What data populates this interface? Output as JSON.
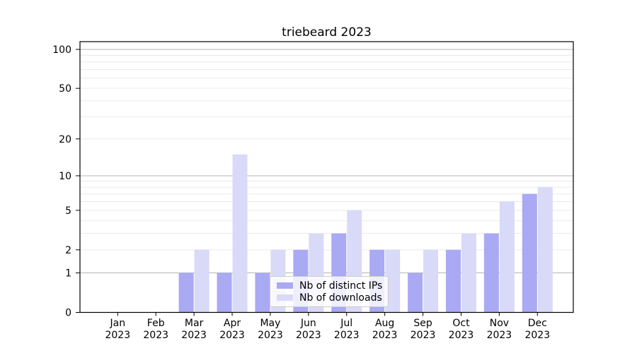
{
  "chart_data": {
    "type": "bar",
    "title": "triebeard 2023",
    "categories": [
      "Jan",
      "Feb",
      "Mar",
      "Apr",
      "May",
      "Jun",
      "Jul",
      "Aug",
      "Sep",
      "Oct",
      "Nov",
      "Dec"
    ],
    "year": "2023",
    "series": [
      {
        "name": "Nb of distinct IPs",
        "color": "#a9a9f4",
        "values": [
          0,
          0,
          1,
          1,
          1,
          2,
          3,
          2,
          1,
          2,
          3,
          7
        ]
      },
      {
        "name": "Nb of downloads",
        "color": "#d9d9f8",
        "values": [
          0,
          0,
          2,
          15,
          2,
          3,
          5,
          2,
          2,
          3,
          6,
          8
        ]
      }
    ],
    "xlabel": "",
    "ylabel": "",
    "y_scale": "log1p",
    "ylim": [
      0,
      114
    ],
    "y_ticks": [
      0,
      1,
      2,
      5,
      10,
      20,
      50,
      100
    ],
    "grid": {
      "major_lines": [
        1,
        10,
        100
      ],
      "minor_lines": [
        2,
        3,
        4,
        5,
        6,
        7,
        8,
        9,
        20,
        30,
        40,
        50,
        60,
        70,
        80,
        90
      ],
      "major_color": "#b4b4b4",
      "minor_color": "#eaeaea"
    },
    "legend": {
      "position": "lower center",
      "entries": [
        "Nb of distinct IPs",
        "Nb of downloads"
      ]
    }
  }
}
